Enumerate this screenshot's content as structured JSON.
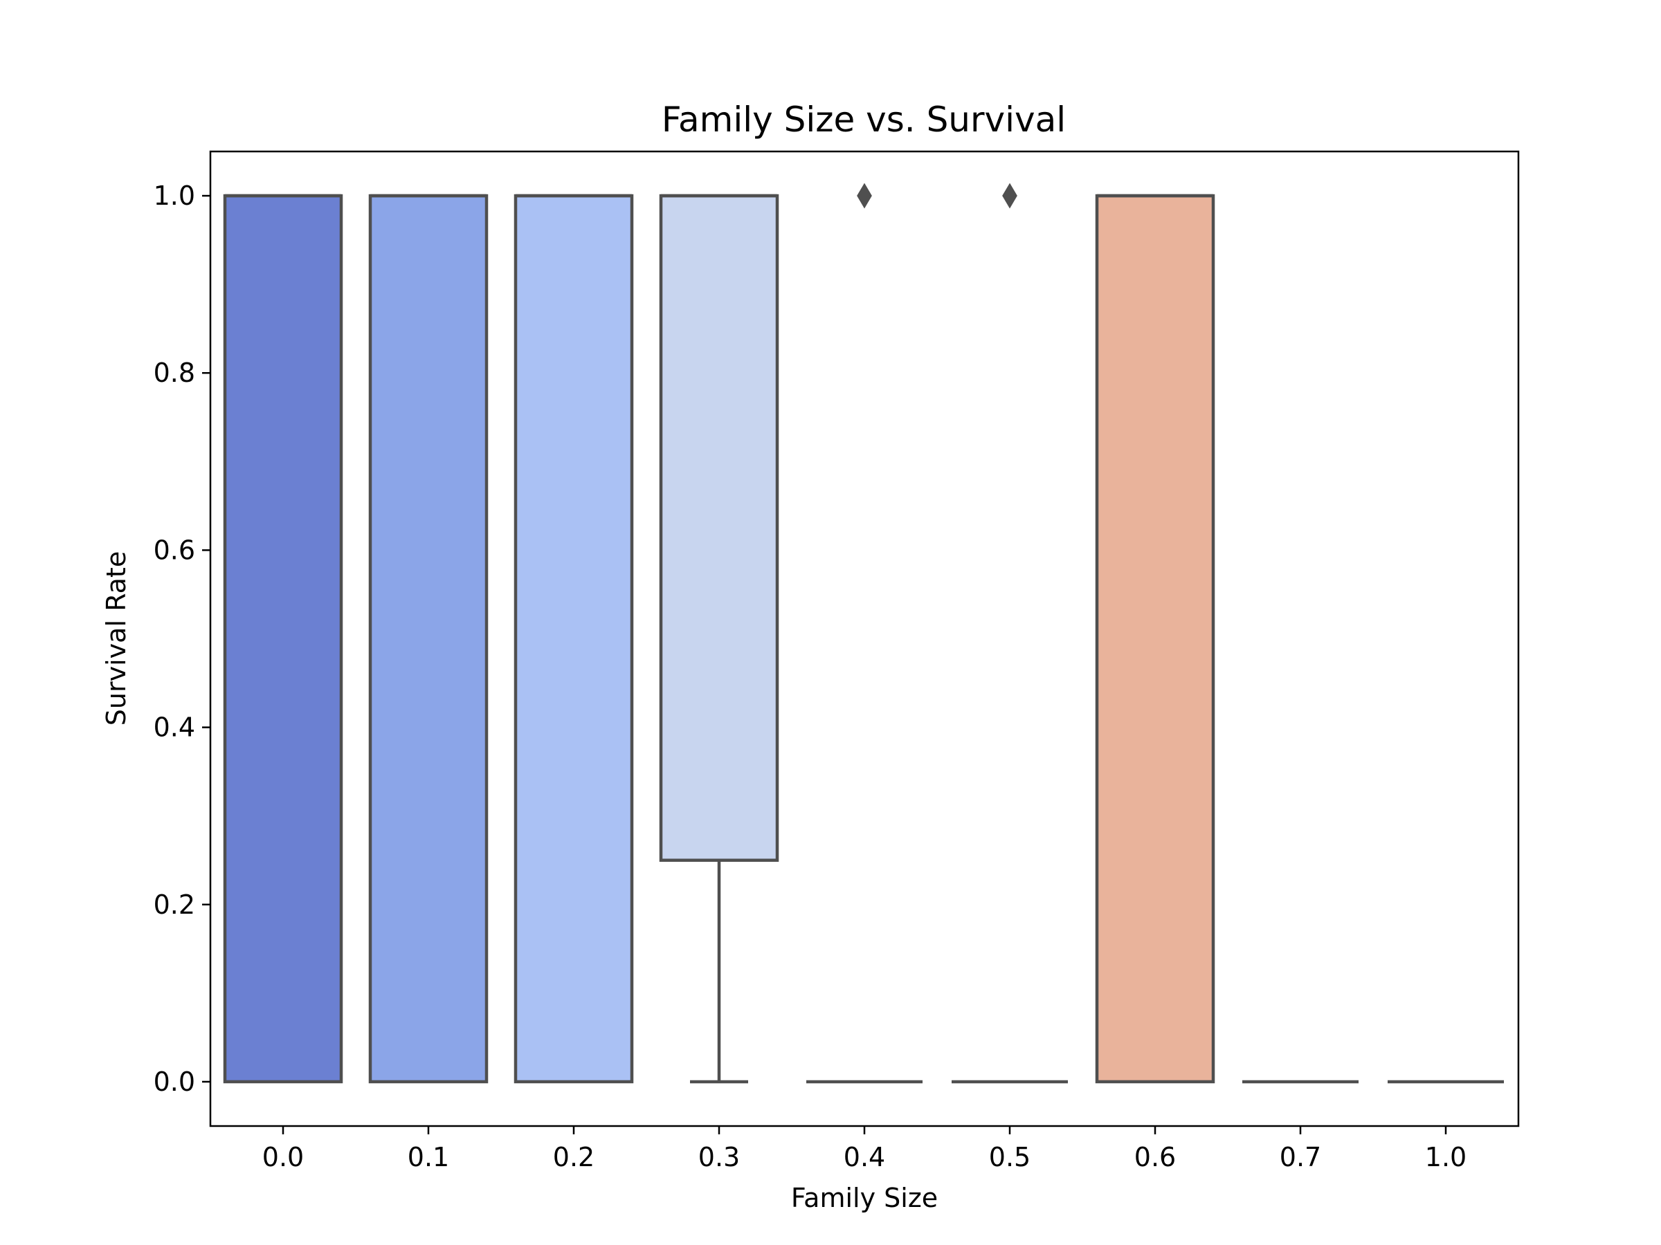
{
  "chart_data": {
    "type": "box",
    "title": "Family Size vs. Survival",
    "xlabel": "Family Size",
    "ylabel": "Survival Rate",
    "ylim": [
      -0.05,
      1.05
    ],
    "yticks": [
      0.0,
      0.2,
      0.4,
      0.6,
      0.8,
      1.0
    ],
    "ytick_labels": [
      "0.0",
      "0.2",
      "0.4",
      "0.6",
      "0.8",
      "1.0"
    ],
    "categories": [
      "0.0",
      "0.1",
      "0.2",
      "0.3",
      "0.4",
      "0.5",
      "0.6",
      "0.7",
      "1.0"
    ],
    "grid": false,
    "boxes": [
      {
        "category": "0.0",
        "q1": 0.0,
        "median": 1.0,
        "q3": 1.0,
        "whisker_low": 0.0,
        "whisker_high": 1.0,
        "outliers": [],
        "color": "#6b80d2"
      },
      {
        "category": "0.1",
        "q1": 0.0,
        "median": 1.0,
        "q3": 1.0,
        "whisker_low": 0.0,
        "whisker_high": 1.0,
        "outliers": [],
        "color": "#8ba5e8"
      },
      {
        "category": "0.2",
        "q1": 0.0,
        "median": 1.0,
        "q3": 1.0,
        "whisker_low": 0.0,
        "whisker_high": 1.0,
        "outliers": [],
        "color": "#aac1f4"
      },
      {
        "category": "0.3",
        "q1": 0.25,
        "median": 1.0,
        "q3": 1.0,
        "whisker_low": 0.0,
        "whisker_high": 1.0,
        "outliers": [],
        "color": "#c8d5ef"
      },
      {
        "category": "0.4",
        "q1": 0.0,
        "median": 0.0,
        "q3": 0.0,
        "whisker_low": 0.0,
        "whisker_high": 0.0,
        "outliers": [
          1.0
        ],
        "color": "#e8d6cc"
      },
      {
        "category": "0.5",
        "q1": 0.0,
        "median": 0.0,
        "q3": 0.0,
        "whisker_low": 0.0,
        "whisker_high": 0.0,
        "outliers": [
          1.0
        ],
        "color": "#f1c5b0"
      },
      {
        "category": "0.6",
        "q1": 0.0,
        "median": 1.0,
        "q3": 1.0,
        "whisker_low": 0.0,
        "whisker_high": 1.0,
        "outliers": [],
        "color": "#e9b39b"
      },
      {
        "category": "0.7",
        "q1": 0.0,
        "median": 0.0,
        "q3": 0.0,
        "whisker_low": 0.0,
        "whisker_high": 0.0,
        "outliers": [],
        "color": "#e59a80"
      },
      {
        "category": "1.0",
        "q1": 0.0,
        "median": 0.0,
        "q3": 0.0,
        "whisker_low": 0.0,
        "whisker_high": 0.0,
        "outliers": [],
        "color": "#d87a62"
      }
    ],
    "colors": {
      "line": "#4f4f4f",
      "frame": "#000000"
    }
  }
}
